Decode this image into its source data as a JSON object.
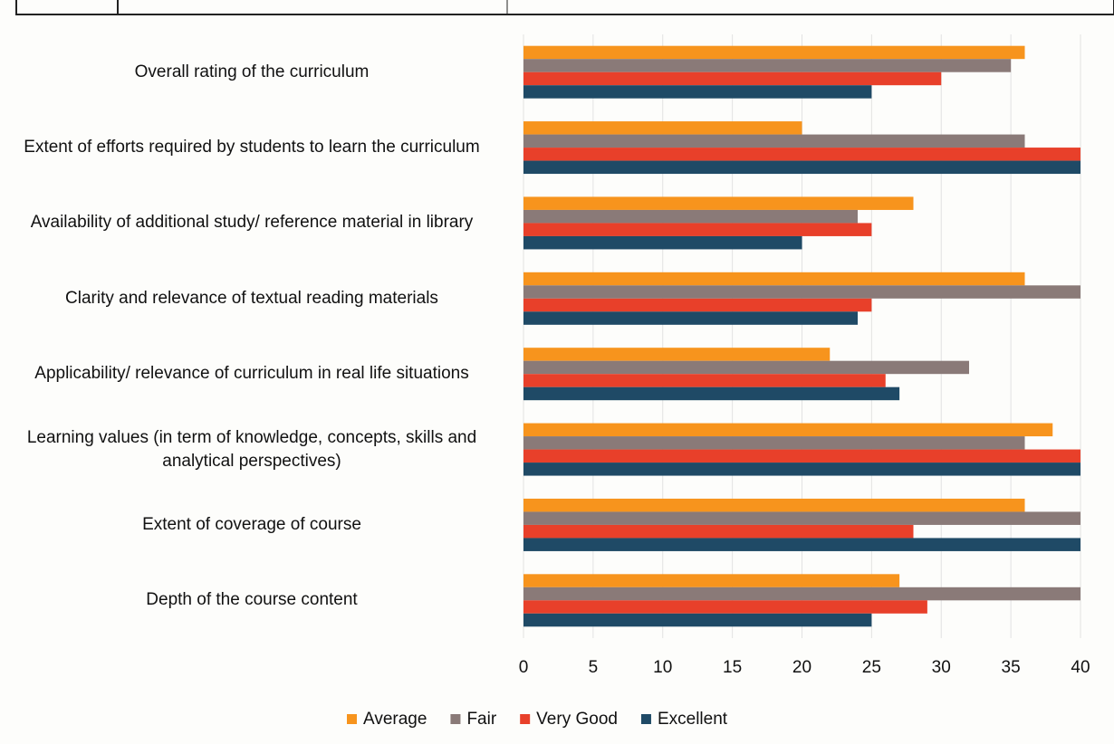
{
  "chart_data": {
    "type": "bar",
    "orientation": "horizontal",
    "categories": [
      "Overall rating of the curriculum",
      "Extent of efforts required by students to learn the curriculum",
      "Availability of additional study/ reference material in library",
      "Clarity and relevance of textual reading materials",
      "Applicability/ relevance of curriculum in real life situations",
      "Learning values (in term of knowledge, concepts, skills and analytical perspectives)",
      "Extent of coverage of course",
      "Depth of the course content"
    ],
    "series": [
      {
        "name": "Average",
        "color": "#f7941d",
        "values": [
          36,
          20,
          28,
          36,
          22,
          38,
          36,
          27
        ]
      },
      {
        "name": "Fair",
        "color": "#8a7a78",
        "values": [
          35,
          36,
          24,
          40,
          32,
          36,
          40,
          40
        ]
      },
      {
        "name": "Very Good",
        "color": "#e8402a",
        "values": [
          30,
          40,
          25,
          25,
          26,
          40,
          28,
          29
        ]
      },
      {
        "name": "Excellent",
        "color": "#1f4a66",
        "values": [
          25,
          40,
          20,
          24,
          27,
          40,
          40,
          25
        ]
      }
    ],
    "xlim": [
      0,
      40
    ],
    "xticks": [
      0,
      5,
      10,
      15,
      20,
      25,
      30,
      35,
      40
    ],
    "grid": true,
    "legend": "bottom"
  }
}
